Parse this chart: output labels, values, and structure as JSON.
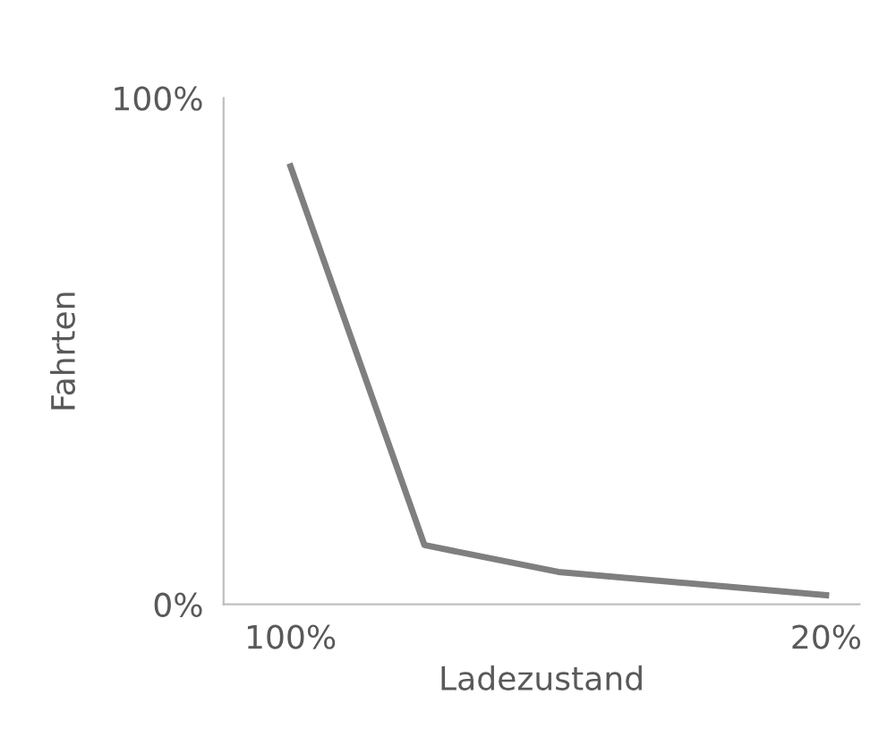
{
  "chart_data": {
    "type": "line",
    "xlabel": "Ladezustand",
    "ylabel": "Fahrten",
    "x": [
      100,
      80,
      60,
      20
    ],
    "series": [
      {
        "color": "#7f7f7f",
        "values": [
          86.5,
          11.7,
          6.4,
          1.8
        ]
      }
    ],
    "xlim": [
      110,
      15
    ],
    "xticks": [
      {
        "value": 100,
        "label": "100%"
      },
      {
        "value": 20,
        "label": "20%"
      }
    ],
    "ylim": [
      0,
      100
    ],
    "yticks": [
      {
        "value": 0,
        "label": "0%"
      },
      {
        "value": 100,
        "label": "100%"
      }
    ],
    "grid": false,
    "legend": false,
    "marker": "none",
    "line_style": "solid"
  }
}
